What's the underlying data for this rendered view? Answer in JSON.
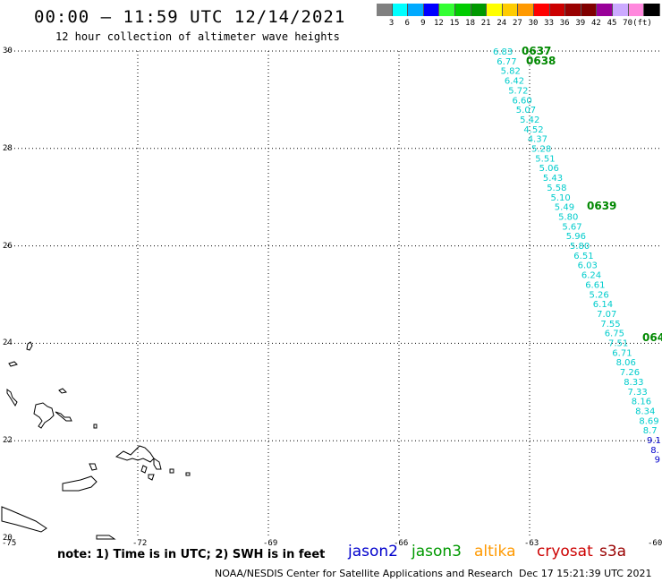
{
  "header": {
    "title": "00:00 – 11:59 UTC 12/14/2021",
    "subtitle": "12 hour collection of altimeter wave heights"
  },
  "colorbar": {
    "unit": "(ft)",
    "colors": [
      "#808080",
      "#00ffff",
      "#00aaff",
      "#0000ff",
      "#33ff33",
      "#00cc00",
      "#009900",
      "#ffff00",
      "#ffcc00",
      "#ff9900",
      "#ff0000",
      "#cc0000",
      "#990000",
      "#800000",
      "#990099",
      "#ccaaff",
      "#ff88dd",
      "#000000"
    ],
    "ticks": [
      "3",
      "6",
      "9",
      "12",
      "15",
      "18",
      "21",
      "24",
      "27",
      "30",
      "33",
      "36",
      "39",
      "42",
      "45",
      "70"
    ]
  },
  "axes": {
    "lat_labels": [
      "30",
      "28",
      "26",
      "24",
      "22",
      "20"
    ],
    "lon_labels": [
      "-75",
      "-72",
      "-69",
      "-66",
      "-63",
      "-60"
    ]
  },
  "track": {
    "color_cyan": "#00cccc",
    "color_blue": "#0000cc",
    "swh": [
      "6.83",
      "6.77",
      "5.82",
      "6.42",
      "5.72",
      "6.60",
      "5.07",
      "5.42",
      "4.52",
      "4.37",
      "5.28",
      "5.51",
      "5.06",
      "5.43",
      "5.58",
      "5.10",
      "5.49",
      "5.80",
      "5.67",
      "5.96",
      "5.80",
      "6.51",
      "6.03",
      "6.24",
      "6.61",
      "5.26",
      "6.14",
      "7.07",
      "7.55",
      "6.75",
      "7.51",
      "6.71",
      "8.06",
      "7.26",
      "8.33",
      "7.33",
      "8.16",
      "8.34",
      "8.69",
      "8.7",
      "9.1",
      "8.",
      "9"
    ],
    "times": [
      "0637",
      "0638",
      "0639",
      "064"
    ]
  },
  "footer": {
    "note": "note:  1) Time is in UTC;  2) SWH is in feet",
    "legend": [
      {
        "name": "jason2",
        "color": "#0000cc"
      },
      {
        "name": "jason3",
        "color": "#009900"
      },
      {
        "name": "altika",
        "color": "#ff9900"
      },
      {
        "name": "cryosat",
        "color": "#cc0000"
      },
      {
        "name": "s3a",
        "color": "#990000"
      }
    ],
    "credit": "NOAA/NESDIS Center for Satellite Applications and Research",
    "date": "Dec 17 15:21:39 UTC 2021"
  }
}
